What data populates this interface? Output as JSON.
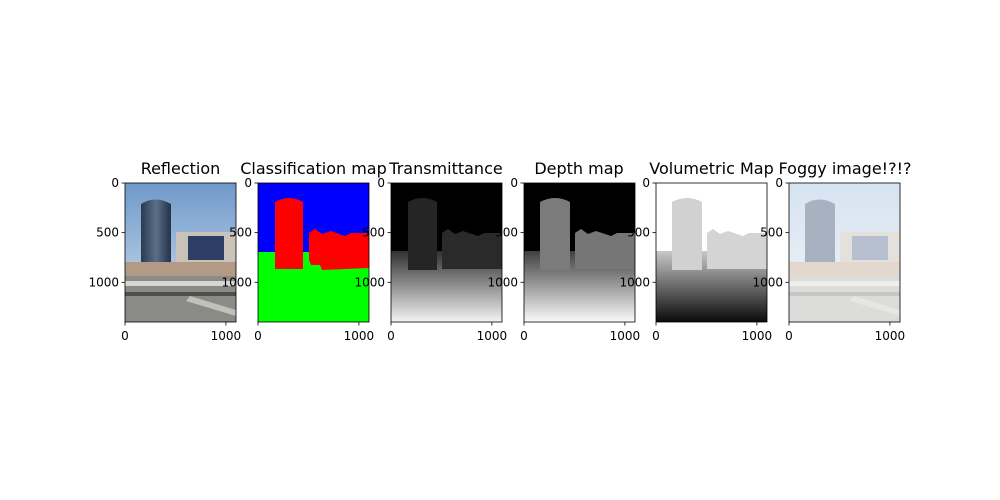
{
  "chart_data": {
    "type": "image-grid",
    "panels": [
      {
        "title": "Reflection",
        "kind": "photo",
        "xticks": [
          0,
          1000
        ],
        "yticks": [
          0,
          500,
          1000
        ],
        "xlim": [
          0,
          1100
        ],
        "ylim": [
          1400,
          0
        ]
      },
      {
        "title": "Classification map",
        "kind": "classification",
        "colors": [
          "#0000ff",
          "#ff0000",
          "#00ff00"
        ],
        "xticks": [
          0,
          1000
        ],
        "yticks": [
          0,
          500,
          1000
        ],
        "xlim": [
          0,
          1100
        ],
        "ylim": [
          1400,
          0
        ]
      },
      {
        "title": "Transmittance",
        "kind": "transmittance",
        "xticks": [
          0,
          1000
        ],
        "yticks": [
          0,
          500,
          1000
        ],
        "xlim": [
          0,
          1100
        ],
        "ylim": [
          1400,
          0
        ]
      },
      {
        "title": "Depth map",
        "kind": "depth",
        "xticks": [
          0,
          1000
        ],
        "yticks": [
          0,
          500,
          1000
        ],
        "xlim": [
          0,
          1100
        ],
        "ylim": [
          1400,
          0
        ]
      },
      {
        "title": "Volumetric Map",
        "kind": "volumetric",
        "xticks": [
          0,
          1000
        ],
        "yticks": [
          0,
          500,
          1000
        ],
        "xlim": [
          0,
          1100
        ],
        "ylim": [
          1400,
          0
        ]
      },
      {
        "title": "Foggy image!?!?",
        "kind": "foggy",
        "xticks": [
          0,
          1000
        ],
        "yticks": [
          0,
          500,
          1000
        ],
        "xlim": [
          0,
          1100
        ],
        "ylim": [
          1400,
          0
        ]
      }
    ]
  }
}
